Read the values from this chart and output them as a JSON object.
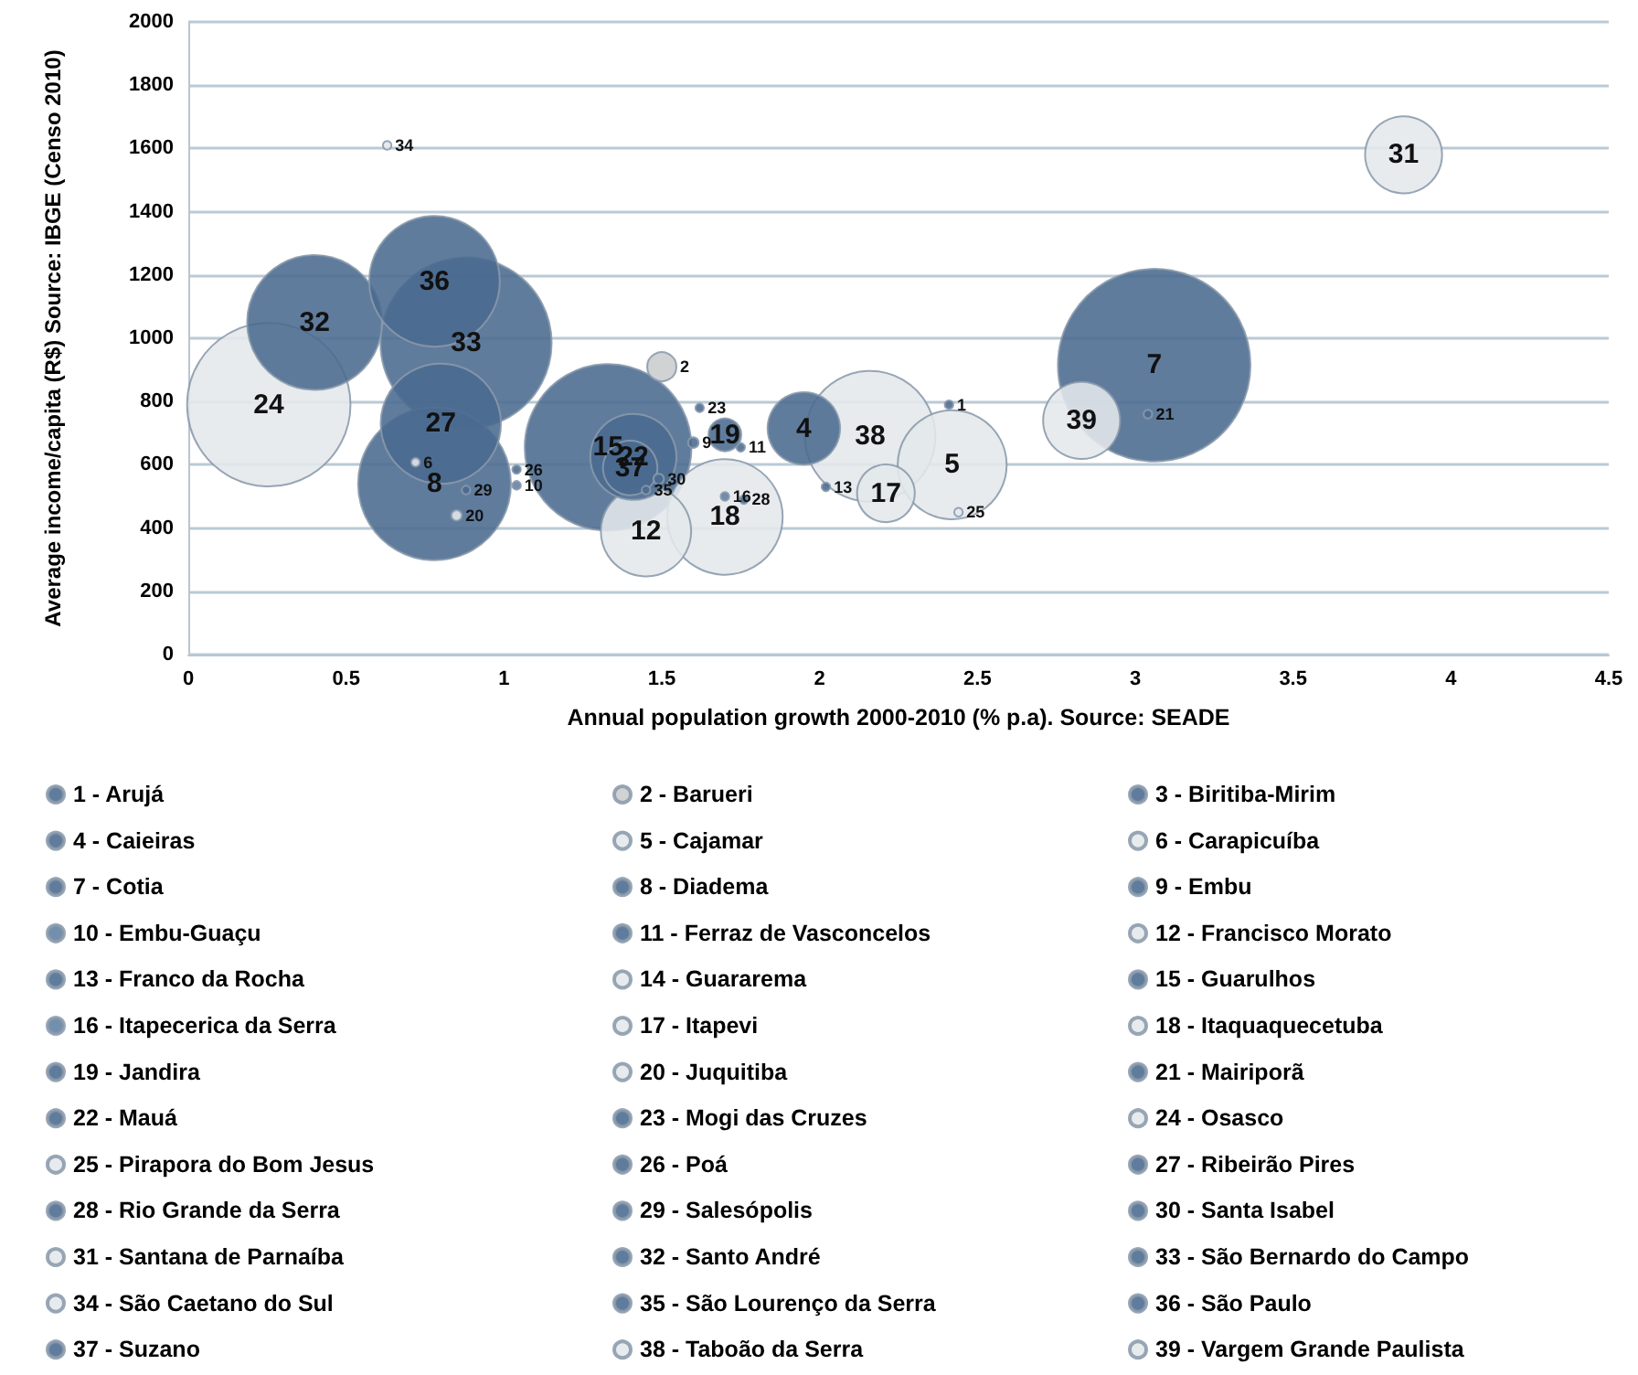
{
  "chart_data": {
    "type": "bubble",
    "xlabel": "Annual population growth 2000-2010 (% p.a). Source: SEADE",
    "ylabel": "Average income/capita (R$) Source: IBGE (Censo 2010)",
    "xlim": [
      0,
      4.5
    ],
    "xticks": [
      0,
      0.5,
      1,
      1.5,
      2,
      2.5,
      3,
      3.5,
      4,
      4.5
    ],
    "ylim": [
      0,
      2000
    ],
    "yticks": [
      0,
      200,
      400,
      600,
      800,
      1000,
      1200,
      1400,
      1600,
      1800,
      2000
    ],
    "grid": "y",
    "legend": "bottom",
    "series": [
      {
        "name": "1 - Arujá",
        "color": "#4a6a8f",
        "x": [
          2.41
        ],
        "values": [
          790
        ],
        "sizes": [
          0.002
        ]
      },
      {
        "name": "2 - Barueri",
        "color": "#c9ccce",
        "x": [
          1.5
        ],
        "values": [
          910
        ],
        "sizes": [
          0.023
        ]
      },
      {
        "name": "3 - Biritiba-Mirim",
        "color": "#4a6a8f",
        "x": [
          null
        ],
        "values": [
          null
        ],
        "sizes": [
          null
        ]
      },
      {
        "name": "4 - Caieiras",
        "color": "#4a6a8f",
        "x": [
          1.95
        ],
        "values": [
          715
        ],
        "sizes": [
          0.142
        ]
      },
      {
        "name": "5 - Cajamar",
        "color": "#e4e8ec",
        "x": [
          2.42
        ],
        "values": [
          600
        ],
        "sizes": [
          0.32
        ]
      },
      {
        "name": "6 - Carapicuíba",
        "color": "#e4e8ec",
        "x": [
          0.72
        ],
        "values": [
          608
        ],
        "sizes": [
          0.002
        ]
      },
      {
        "name": "7 - Cotia",
        "color": "#4a6a8f",
        "x": [
          3.06
        ],
        "values": [
          915
        ],
        "sizes": [
          1
        ]
      },
      {
        "name": "8 - Diadema",
        "color": "#4a6a8f",
        "x": [
          0.78
        ],
        "values": [
          540
        ],
        "sizes": [
          0.63
        ]
      },
      {
        "name": "9 - Embu",
        "color": "#4a6a8f",
        "x": [
          1.6
        ],
        "values": [
          670
        ],
        "sizes": [
          0.003
        ]
      },
      {
        "name": "10 - Embu-Guaçu",
        "color": "#5f7fa3",
        "x": [
          1.04
        ],
        "values": [
          535
        ],
        "sizes": [
          0.002
        ]
      },
      {
        "name": "11 - Ferraz de Vasconcelos",
        "color": "#4a6a8f",
        "x": [
          1.75
        ],
        "values": [
          655
        ],
        "sizes": [
          0.002
        ]
      },
      {
        "name": "12 - Francisco Morato",
        "color": "#e4e8ec",
        "x": [
          1.45
        ],
        "values": [
          390
        ],
        "sizes": [
          0.22
        ]
      },
      {
        "name": "13 - Franco da Rocha",
        "color": "#4a6a8f",
        "x": [
          2.02
        ],
        "values": [
          530
        ],
        "sizes": [
          0.002
        ]
      },
      {
        "name": "14 - Guararema",
        "color": "#e4e8ec",
        "x": [
          null
        ],
        "values": [
          null
        ],
        "sizes": [
          null
        ]
      },
      {
        "name": "15 - Guarulhos",
        "color": "#4a6a8f",
        "x": [
          1.33
        ],
        "values": [
          655
        ],
        "sizes": [
          0.75
        ]
      },
      {
        "name": "16 - Itapecerica da Serra",
        "color": "#5f7fa3",
        "x": [
          1.7
        ],
        "values": [
          500
        ],
        "sizes": [
          0.002
        ]
      },
      {
        "name": "17 - Itapevi",
        "color": "#e4e8ec",
        "x": [
          2.21
        ],
        "values": [
          510
        ],
        "sizes": [
          0.09
        ]
      },
      {
        "name": "18 - Itaquaquecetuba",
        "color": "#e4e8ec",
        "x": [
          1.7
        ],
        "values": [
          435
        ],
        "sizes": [
          0.36
        ]
      },
      {
        "name": "19 - Jandira",
        "color": "#4a6a8f",
        "x": [
          1.7
        ],
        "values": [
          695
        ],
        "sizes": [
          0.029
        ]
      },
      {
        "name": "20 - Juquitiba",
        "color": "#e4e8ec",
        "x": [
          0.85
        ],
        "values": [
          440
        ],
        "sizes": [
          0.003
        ]
      },
      {
        "name": "21 - Mairiporã",
        "color": "#4a6a8f",
        "x": [
          3.04
        ],
        "values": [
          760
        ],
        "sizes": [
          0.002
        ]
      },
      {
        "name": "22 - Mauá",
        "color": "#4a6a8f",
        "x": [
          1.41
        ],
        "values": [
          625
        ],
        "sizes": [
          0.2
        ]
      },
      {
        "name": "23 - Mogi das Cruzes",
        "color": "#4a6a8f",
        "x": [
          1.62
        ],
        "values": [
          780
        ],
        "sizes": [
          0.002
        ]
      },
      {
        "name": "24 - Osasco",
        "color": "#e4e8ec",
        "x": [
          0.255
        ],
        "values": [
          790
        ],
        "sizes": [
          0.72
        ]
      },
      {
        "name": "25 - Pirapora do Bom Jesus",
        "color": "#e4e8ec",
        "x": [
          2.44
        ],
        "values": [
          450
        ],
        "sizes": [
          0.002
        ]
      },
      {
        "name": "26 - Poá",
        "color": "#4a6a8f",
        "x": [
          1.04
        ],
        "values": [
          585
        ],
        "sizes": [
          0.002
        ]
      },
      {
        "name": "27 - Ribeirão Pires",
        "color": "#4a6a8f",
        "x": [
          0.8
        ],
        "values": [
          730
        ],
        "sizes": [
          0.39
        ]
      },
      {
        "name": "28 - Rio Grande da Serra",
        "color": "#4a6a8f",
        "x": [
          1.76
        ],
        "values": [
          490
        ],
        "sizes": [
          0.002
        ]
      },
      {
        "name": "29 - Salesópolis",
        "color": "#4a6a8f",
        "x": [
          0.88
        ],
        "values": [
          520
        ],
        "sizes": [
          0.002
        ]
      },
      {
        "name": "30 - Santa Isabel",
        "color": "#4a6a8f",
        "x": [
          1.49
        ],
        "values": [
          555
        ],
        "sizes": [
          0.003
        ]
      },
      {
        "name": "31 - Santana de Parnaíba",
        "color": "#e4e8ec",
        "x": [
          3.85
        ],
        "values": [
          1580
        ],
        "sizes": [
          0.16
        ]
      },
      {
        "name": "32 - Santo André",
        "color": "#4a6a8f",
        "x": [
          0.4
        ],
        "values": [
          1050
        ],
        "sizes": [
          0.49
        ]
      },
      {
        "name": "33 - São Bernardo do Campo",
        "color": "#4a6a8f",
        "x": [
          0.88
        ],
        "values": [
          985
        ],
        "sizes": [
          0.79
        ]
      },
      {
        "name": "34 - São Caetano do Sul",
        "color": "#e4e8ec",
        "x": [
          0.63
        ],
        "values": [
          1610
        ],
        "sizes": [
          0.002
        ]
      },
      {
        "name": "35 - São Lourenço da Serra",
        "color": "#4a6a8f",
        "x": [
          1.45
        ],
        "values": [
          520
        ],
        "sizes": [
          0.002
        ]
      },
      {
        "name": "36 - São Paulo",
        "color": "#4a6a8f",
        "x": [
          0.78
        ],
        "values": [
          1180
        ],
        "sizes": [
          0.46
        ]
      },
      {
        "name": "37 - Suzano",
        "color": "#4a6a8f",
        "x": [
          1.4
        ],
        "values": [
          590
        ],
        "sizes": [
          0.08
        ]
      },
      {
        "name": "38 - Taboão da Serra",
        "color": "#e4e8ec",
        "x": [
          2.16
        ],
        "values": [
          690
        ],
        "sizes": [
          0.46
        ]
      },
      {
        "name": "39 - Vargem Grande Paulista",
        "color": "#e4e8ec",
        "x": [
          2.83
        ],
        "values": [
          740
        ],
        "sizes": [
          0.16
        ]
      }
    ],
    "annotations": [
      {
        "text": "1",
        "x": 2.41,
        "y": 790
      },
      {
        "text": "2",
        "x": 1.5,
        "y": 910
      },
      {
        "text": "4",
        "x": 1.95,
        "y": 715
      },
      {
        "text": "5",
        "x": 2.42,
        "y": 600
      },
      {
        "text": "6",
        "x": 0.72,
        "y": 608
      },
      {
        "text": "7",
        "x": 3.06,
        "y": 915
      },
      {
        "text": "8",
        "x": 0.78,
        "y": 540
      },
      {
        "text": "9",
        "x": 1.6,
        "y": 670
      },
      {
        "text": "10",
        "x": 1.04,
        "y": 535
      },
      {
        "text": "11",
        "x": 1.75,
        "y": 655
      },
      {
        "text": "12",
        "x": 1.45,
        "y": 390
      },
      {
        "text": "13",
        "x": 2.02,
        "y": 530
      },
      {
        "text": "15",
        "x": 1.33,
        "y": 655
      },
      {
        "text": "16",
        "x": 1.7,
        "y": 500
      },
      {
        "text": "17",
        "x": 2.21,
        "y": 510
      },
      {
        "text": "18",
        "x": 1.7,
        "y": 435
      },
      {
        "text": "19",
        "x": 1.7,
        "y": 695
      },
      {
        "text": "20",
        "x": 0.85,
        "y": 440
      },
      {
        "text": "21",
        "x": 3.04,
        "y": 760
      },
      {
        "text": "22",
        "x": 1.41,
        "y": 625
      },
      {
        "text": "23",
        "x": 1.62,
        "y": 780
      },
      {
        "text": "24",
        "x": 0.255,
        "y": 790
      },
      {
        "text": "25",
        "x": 2.44,
        "y": 450
      },
      {
        "text": "26",
        "x": 1.04,
        "y": 585
      },
      {
        "text": "27",
        "x": 0.8,
        "y": 730
      },
      {
        "text": "28",
        "x": 1.76,
        "y": 490
      },
      {
        "text": "29",
        "x": 0.88,
        "y": 520
      },
      {
        "text": "30",
        "x": 1.49,
        "y": 555
      },
      {
        "text": "31",
        "x": 3.85,
        "y": 1580
      },
      {
        "text": "32",
        "x": 0.4,
        "y": 1050
      },
      {
        "text": "33",
        "x": 0.88,
        "y": 985
      },
      {
        "text": "34",
        "x": 0.63,
        "y": 1610
      },
      {
        "text": "35",
        "x": 1.45,
        "y": 520
      },
      {
        "text": "36",
        "x": 0.78,
        "y": 1180
      },
      {
        "text": "37",
        "x": 1.4,
        "y": 590
      },
      {
        "text": "38",
        "x": 2.16,
        "y": 690
      },
      {
        "text": "39",
        "x": 2.83,
        "y": 740
      }
    ]
  }
}
